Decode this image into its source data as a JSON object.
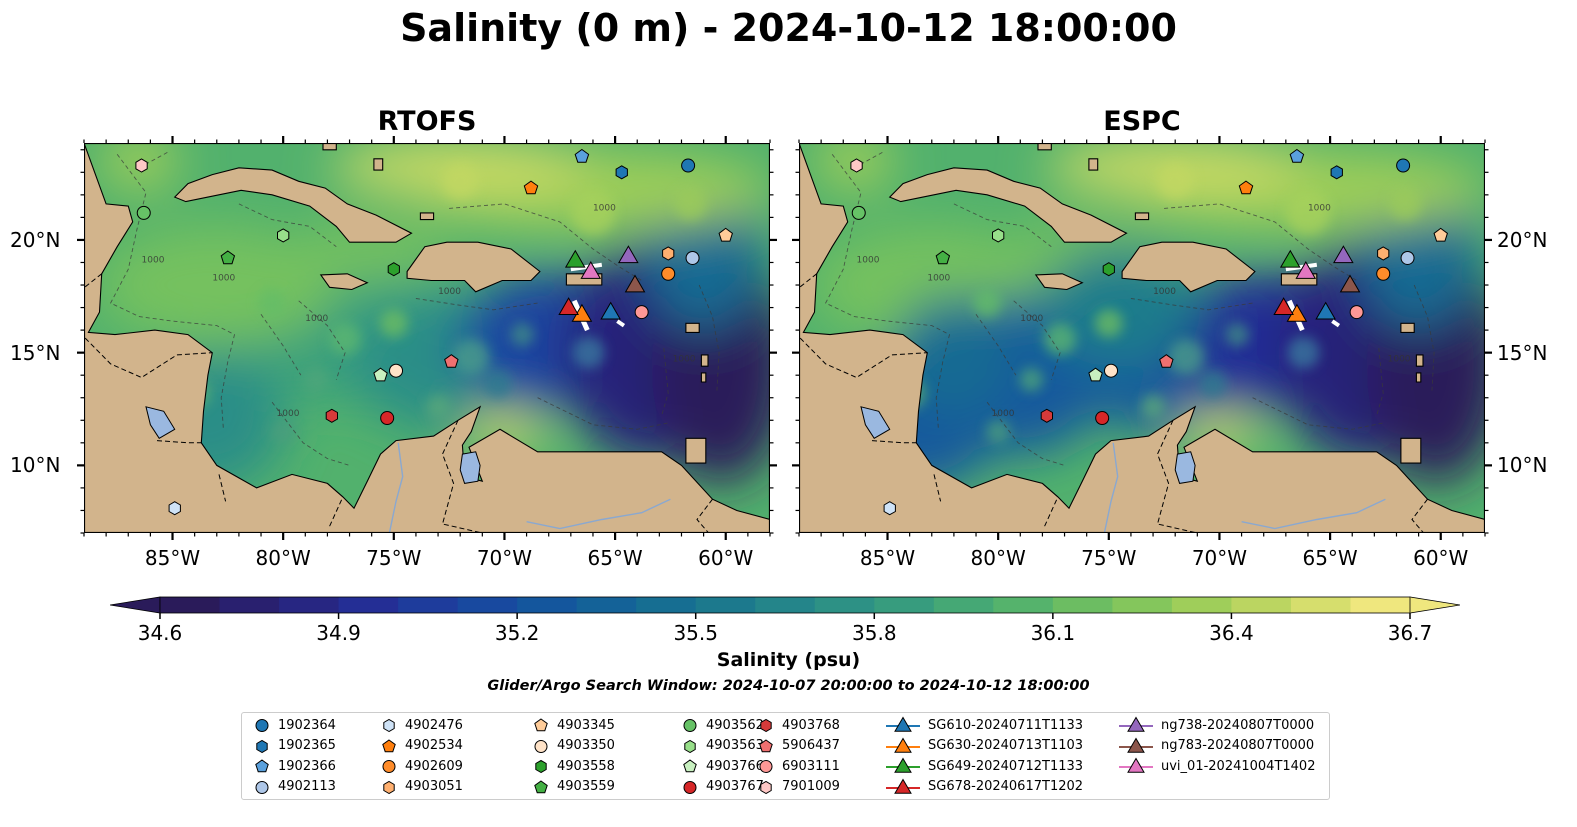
{
  "title": "Salinity (0 m) - 2024-10-12 18:00:00",
  "panels": [
    {
      "id": "rtofs",
      "title": "RTOFS"
    },
    {
      "id": "espc",
      "title": "ESPC"
    }
  ],
  "axes": {
    "lon_ticks": [
      "85°W",
      "80°W",
      "75°W",
      "70°W",
      "65°W",
      "60°W"
    ],
    "lat_ticks": [
      "20°N",
      "15°N",
      "10°N"
    ],
    "lon_range": [
      -89,
      -58
    ],
    "lat_range": [
      7,
      24.3
    ],
    "contour_label": "1000"
  },
  "colorbar": {
    "label": "Salinity (psu)",
    "ticks": [
      "34.6",
      "34.9",
      "35.2",
      "35.5",
      "35.8",
      "36.1",
      "36.4",
      "36.7"
    ],
    "range": [
      34.6,
      36.7
    ],
    "extend": "both",
    "colormap": "haline",
    "colors": [
      "#2a1b5a",
      "#28227a",
      "#242f96",
      "#1a44a0",
      "#13589d",
      "#146a93",
      "#1d7c8c",
      "#2b8e87",
      "#3aa07c",
      "#52b16d",
      "#74c15e",
      "#9dcd59",
      "#c8d964",
      "#efe77e"
    ]
  },
  "search_window": "Glider/Argo Search Window: 2024-10-07 20:00:00 to 2024-10-12 18:00:00",
  "land_color": "#d2b48c",
  "lake_color": "#9ab8e0",
  "legend": {
    "items": [
      {
        "label": "1902364",
        "marker": "circle",
        "color": "#1f77b4"
      },
      {
        "label": "1902365",
        "marker": "hexagon",
        "color": "#1f77b4"
      },
      {
        "label": "1902366",
        "marker": "pentagon",
        "color": "#5aa0dc"
      },
      {
        "label": "4902113",
        "marker": "circle",
        "color": "#aec7e8"
      },
      {
        "label": "4902476",
        "marker": "hexagon",
        "color": "#cfe3f7"
      },
      {
        "label": "4902534",
        "marker": "pentagon",
        "color": "#ff7f0e"
      },
      {
        "label": "4902609",
        "marker": "circle",
        "color": "#ff8c2a"
      },
      {
        "label": "4903051",
        "marker": "hexagon",
        "color": "#ffb070"
      },
      {
        "label": "4903345",
        "marker": "pentagon",
        "color": "#ffcc99"
      },
      {
        "label": "4903350",
        "marker": "circle",
        "color": "#ffe3c8"
      },
      {
        "label": "4903558",
        "marker": "hexagon",
        "color": "#2ca02c"
      },
      {
        "label": "4903559",
        "marker": "pentagon",
        "color": "#44b044"
      },
      {
        "label": "4903562",
        "marker": "circle",
        "color": "#66c266"
      },
      {
        "label": "4903563",
        "marker": "hexagon",
        "color": "#98df8a"
      },
      {
        "label": "4903766",
        "marker": "pentagon",
        "color": "#c8f0c0"
      },
      {
        "label": "4903767",
        "marker": "circle",
        "color": "#d62728"
      },
      {
        "label": "4903768",
        "marker": "hexagon",
        "color": "#d63a3a"
      },
      {
        "label": "5906437",
        "marker": "pentagon",
        "color": "#f07070"
      },
      {
        "label": "6903111",
        "marker": "circle",
        "color": "#ff9896"
      },
      {
        "label": "7901009",
        "marker": "hexagon",
        "color": "#ffc8c6"
      },
      {
        "label": "SG610-20240711T1133",
        "marker": "triangle",
        "color": "#1f77b4"
      },
      {
        "label": "SG630-20240713T1103",
        "marker": "triangle",
        "color": "#ff7f0e"
      },
      {
        "label": "SG649-20240712T1133",
        "marker": "triangle",
        "color": "#2ca02c"
      },
      {
        "label": "SG678-20240617T1202",
        "marker": "triangle",
        "color": "#d62728"
      },
      {
        "label": "ng738-20240807T0000",
        "marker": "triangle",
        "color": "#9467bd"
      },
      {
        "label": "ng783-20240807T0000",
        "marker": "triangle",
        "color": "#8c564b"
      },
      {
        "label": "uvi_01-20241004T1402",
        "marker": "triangle",
        "color": "#e377c2"
      }
    ]
  },
  "floats": [
    {
      "id": "1902364",
      "lon": -61.7,
      "lat": 23.3
    },
    {
      "id": "1902365",
      "lon": -64.7,
      "lat": 23.0
    },
    {
      "id": "1902366",
      "lon": -66.5,
      "lat": 23.7
    },
    {
      "id": "4902113",
      "lon": -61.5,
      "lat": 19.2
    },
    {
      "id": "4902476",
      "lon": -84.9,
      "lat": 8.1
    },
    {
      "id": "4902534",
      "lon": -68.8,
      "lat": 22.3
    },
    {
      "id": "4902609",
      "lon": -62.6,
      "lat": 18.5
    },
    {
      "id": "4903051",
      "lon": -62.6,
      "lat": 19.4
    },
    {
      "id": "4903345",
      "lon": -60.0,
      "lat": 20.2
    },
    {
      "id": "4903350",
      "lon": -74.9,
      "lat": 14.2
    },
    {
      "id": "4903558",
      "lon": -75.0,
      "lat": 18.7
    },
    {
      "id": "4903559",
      "lon": -82.5,
      "lat": 19.2
    },
    {
      "id": "4903562",
      "lon": -86.3,
      "lat": 21.2
    },
    {
      "id": "4903563",
      "lon": -80.0,
      "lat": 20.2
    },
    {
      "id": "4903766",
      "lon": -75.6,
      "lat": 14.0
    },
    {
      "id": "4903767",
      "lon": -75.3,
      "lat": 12.1
    },
    {
      "id": "4903768",
      "lon": -77.8,
      "lat": 12.2
    },
    {
      "id": "5906437",
      "lon": -72.4,
      "lat": 14.6
    },
    {
      "id": "6903111",
      "lon": -63.8,
      "lat": 16.8
    },
    {
      "id": "7901009",
      "lon": -86.4,
      "lat": 23.3
    }
  ],
  "gliders": [
    {
      "id": "SG610-20240711T1133",
      "lon": -65.2,
      "lat": 16.8
    },
    {
      "id": "SG630-20240713T1103",
      "lon": -66.5,
      "lat": 16.7
    },
    {
      "id": "SG649-20240712T1133",
      "lon": -66.8,
      "lat": 19.1
    },
    {
      "id": "SG678-20240617T1202",
      "lon": -67.1,
      "lat": 17.0
    },
    {
      "id": "ng738-20240807T0000",
      "lon": -64.4,
      "lat": 19.3
    },
    {
      "id": "ng783-20240807T0000",
      "lon": -64.1,
      "lat": 18.0
    },
    {
      "id": "uvi_01-20241004T1402",
      "lon": -66.1,
      "lat": 18.6
    }
  ]
}
